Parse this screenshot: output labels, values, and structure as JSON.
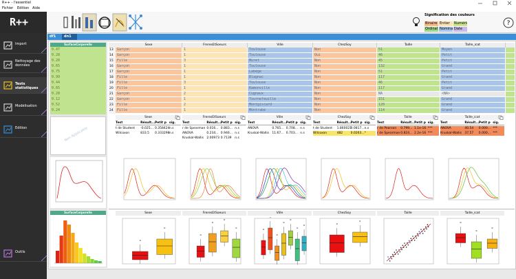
{
  "window": {
    "title": "R++ - l'essentiel"
  },
  "menu": [
    "Fichier",
    "Edition",
    "Aide"
  ],
  "logo": "R++",
  "color_legend": {
    "title": "Signification des couleurs",
    "items": [
      {
        "label": "Binaire",
        "color": "#f7b98d"
      },
      {
        "label": "Entier",
        "color": "#fde2b4"
      },
      {
        "label": "Numérique",
        "color": "#c9e68e"
      },
      {
        "label": "Ordinal",
        "color": "#9fd68a"
      },
      {
        "label": "Nominal",
        "color": "#a9c6ea"
      },
      {
        "label": "Date",
        "color": "#c9b8ea"
      }
    ]
  },
  "help": "?",
  "sidebar": [
    {
      "label": "Import"
    },
    {
      "label": "Nettoyage des données"
    },
    {
      "label": "Tests statistiques"
    },
    {
      "label": "Modélisation"
    },
    {
      "label": "Édition"
    },
    {
      "label": "Outils"
    }
  ],
  "tabs": [
    "df1",
    "dn1"
  ],
  "variable_panel": {
    "header": "SurfaceCorporelle",
    "values": [
      "0.47",
      "0.28",
      "0.20",
      "0.65",
      "0.75",
      "0.99",
      "0.44",
      "0.65",
      "0.28",
      "0.12",
      "0.52",
      "0.24"
    ],
    "note": "Non Applicable",
    "histogram_header": "SurfaceCorporelle"
  },
  "table": {
    "columns": [
      {
        "name": "Sexe",
        "color": "#f9c6a0"
      },
      {
        "name": "FreresEtSoeurs",
        "color": "#fde4b6"
      },
      {
        "name": "Ville",
        "color": "#a9c6ea"
      },
      {
        "name": "ChezSoy",
        "color": "#f9c6a0"
      },
      {
        "name": "Taille",
        "color": "#bfe38e"
      },
      {
        "name": "Taille_icat",
        "color": "#a9c6ea"
      }
    ],
    "rows": [
      {
        "index": "13",
        "cells": [
          "Garçon",
          "1",
          "Toulouse",
          "Non",
          "51",
          "Moyen"
        ]
      },
      {
        "index": "14",
        "cells": [
          "Garçon",
          "1",
          "Toulouse",
          "Oui",
          "46",
          "Petit"
        ]
      },
      {
        "index": "15",
        "cells": [
          "Fille",
          "3",
          "Muret",
          "Non",
          "45",
          "Petit"
        ]
      },
      {
        "index": "16",
        "cells": [
          "Garçon",
          "1",
          "Toulouse",
          "Non",
          "132",
          "Grand"
        ]
      },
      {
        "index": "17",
        "cells": [
          "Garçon",
          "1",
          "Labège",
          "Non",
          "51",
          "Petit"
        ]
      },
      {
        "index": "18",
        "cells": [
          "Fille",
          "1",
          "Blagnac",
          "Non",
          "117",
          "Grand"
        ]
      },
      {
        "index": "19",
        "cells": [
          "Fille",
          "3",
          "Toulouse",
          "Non",
          "46",
          "Petit"
        ]
      },
      {
        "index": "20",
        "cells": [
          "Fille",
          "1",
          "Ramonville",
          "Non",
          "117",
          "Grand"
        ]
      },
      {
        "index": "21",
        "cells": [
          "Garçon",
          "2",
          "Cugnaux",
          "Non",
          "NA",
          "<NA>"
        ]
      },
      {
        "index": "22",
        "cells": [
          "Garçon",
          "1",
          "Tournefeuille",
          "Non",
          "151",
          "Grand"
        ]
      },
      {
        "index": "23",
        "cells": [
          "Fille",
          "2",
          "Montgiscard",
          "Non",
          "120",
          "Grand"
        ]
      },
      {
        "index": "24",
        "cells": [
          "Fille",
          "1",
          "Montrabé",
          "Non",
          "114",
          "Grand"
        ]
      }
    ]
  },
  "test_headers": [
    "Test",
    "Résult...",
    "Petit p",
    "sig."
  ],
  "tests": [
    {
      "rows": [
        {
          "cells": [
            "t de Student",
            "-0.025...",
            "0.358424",
            "n.s"
          ]
        },
        {
          "cells": [
            "Wilcoxon",
            "833.5",
            "0.333298",
            "n.s"
          ]
        }
      ]
    },
    {
      "rows": [
        {
          "cells": [
            "r de Spearman",
            "0.016...",
            "0.883...",
            "n.s"
          ]
        },
        {
          "cells": [
            "ANOVA",
            "0.234...",
            "0.946...",
            "n.s"
          ]
        },
        {
          "cells": [
            "Kruskal-Wallis",
            "2.00973",
            "0.7139",
            "n.s"
          ]
        }
      ]
    },
    {
      "rows": [
        {
          "cells": [
            "ANOVA",
            "0.765...",
            "0.708...",
            "n.s"
          ]
        },
        {
          "cells": [
            "Kruskal-Wallis",
            "11.67...",
            "0.703...",
            "n.s"
          ]
        }
      ]
    },
    {
      "rows": [
        {
          "cells": [
            "t de Student",
            "1.860021",
            "0.0817...",
            "n.s"
          ]
        },
        {
          "cells": [
            "Wilcoxon",
            "482",
            "0.0263...",
            "*"
          ],
          "highlight": "#fbe46a"
        }
      ]
    },
    {
      "rows": [
        {
          "cells": [
            "r de Pearson",
            "0.799...",
            "1.1e-16",
            "***"
          ],
          "highlight": "#f28a5a"
        },
        {
          "cells": [
            "r de Spearman",
            "0.824...",
            "2.2e-16",
            "***"
          ],
          "highlight": "#f28a5a"
        }
      ]
    },
    {
      "rows": [
        {
          "cells": [
            "ANOVA",
            "40.54",
            "0.000...",
            "***"
          ],
          "highlight": "#f28a5a"
        },
        {
          "cells": [
            "Kruskal-Wallis",
            "37.57",
            "0.000...",
            "***"
          ],
          "highlight": "#f28a5a"
        }
      ]
    }
  ]
}
